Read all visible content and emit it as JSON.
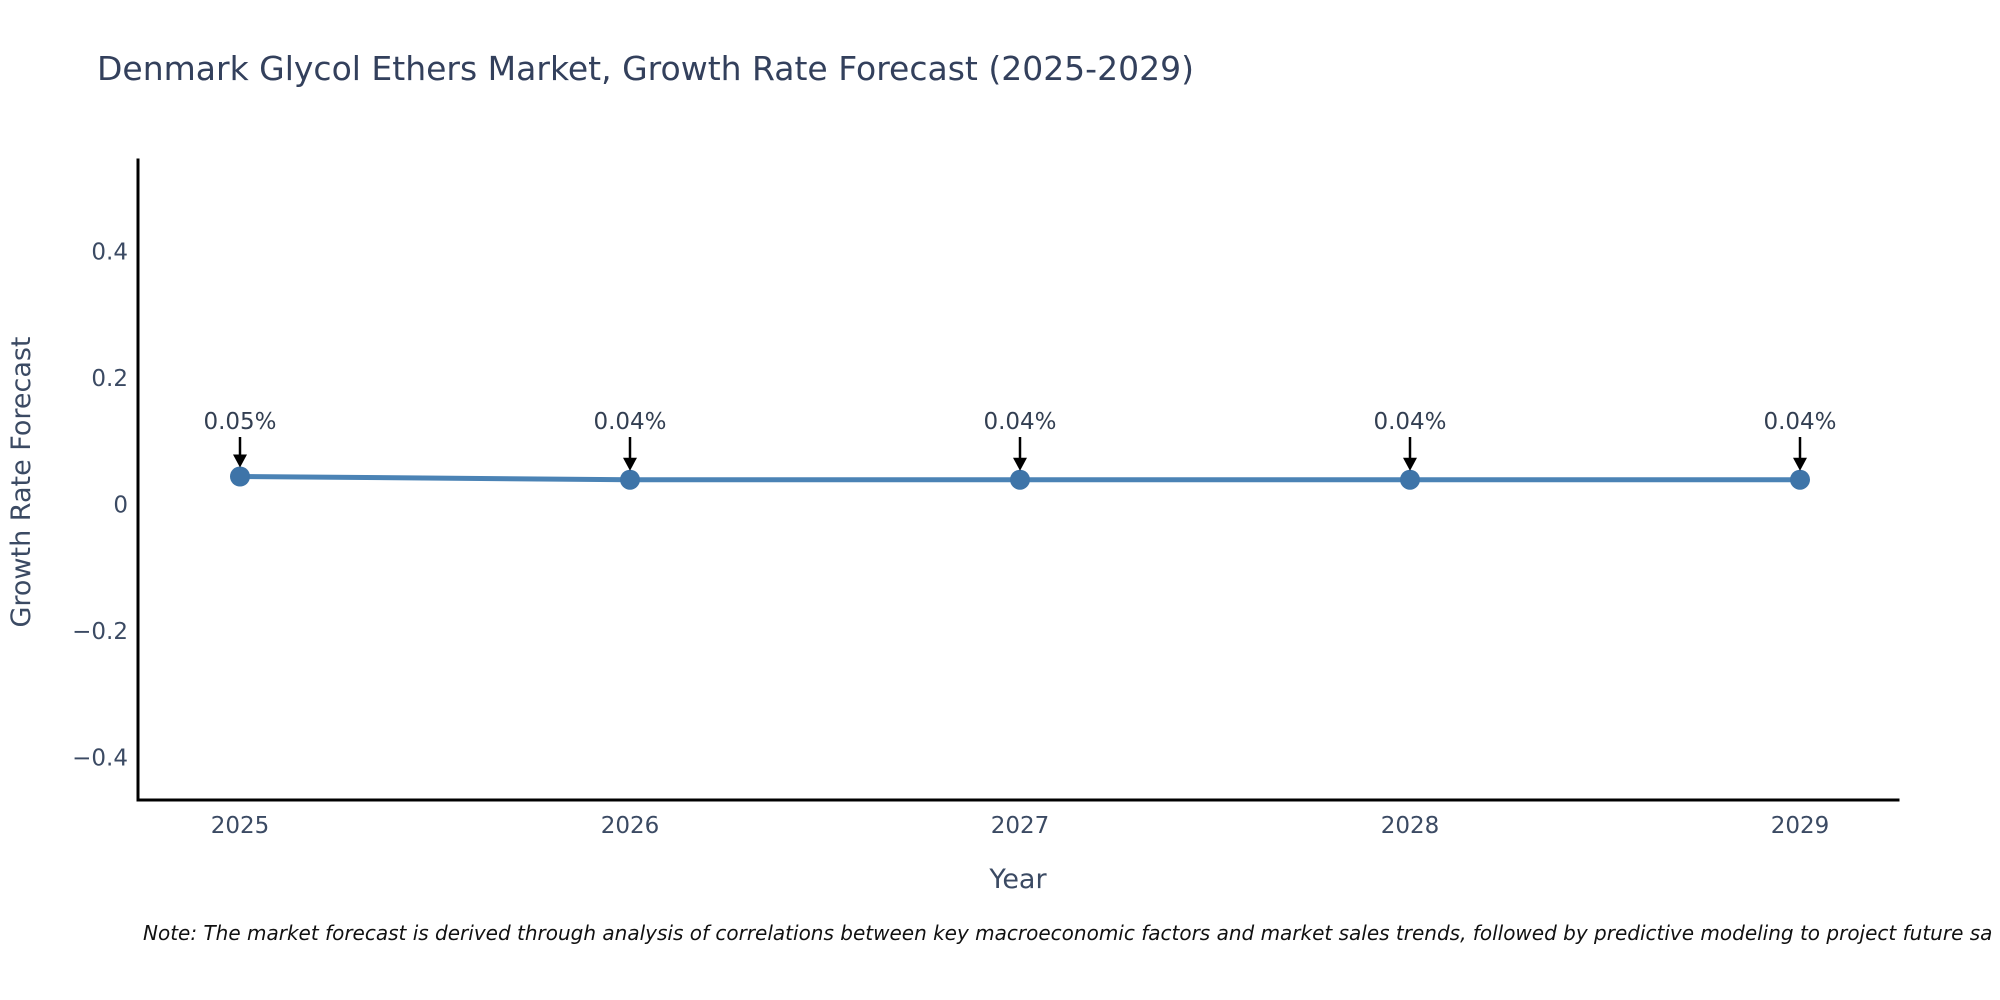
{
  "title": "Denmark Glycol Ethers Market, Growth Rate Forecast (2025-2029)",
  "note": "Note: The market forecast is derived through analysis of correlations between key macroeconomic factors and market sales trends, followed by predictive modeling to project future sa",
  "chart_data": {
    "type": "line",
    "title": "Denmark Glycol Ethers Market, Growth Rate Forecast (2025-2029)",
    "xlabel": "Year",
    "ylabel": "Growth Rate Forecast",
    "x": [
      2025,
      2026,
      2027,
      2028,
      2029
    ],
    "values": [
      0.045,
      0.04,
      0.04,
      0.04,
      0.04
    ],
    "point_labels": [
      "0.05%",
      "0.04%",
      "0.04%",
      "0.04%",
      "0.04%"
    ],
    "yticks": [
      0.4,
      0.2,
      0,
      -0.2,
      -0.4
    ],
    "ytick_labels": [
      "0.4",
      "0.2",
      "0",
      "−0.2",
      "−0.4"
    ],
    "ylim": [
      -0.47,
      0.55
    ],
    "grid": false,
    "legend": null,
    "annotation_arrow_color": "#000000",
    "colors": {
      "line": "#4b83b5",
      "marker": "#3e74a8",
      "spine": "#000000",
      "tick_text": "#3b4a63",
      "title_text": "#33405c",
      "annotation_text": "#333f52",
      "note_text": "#111111"
    }
  }
}
